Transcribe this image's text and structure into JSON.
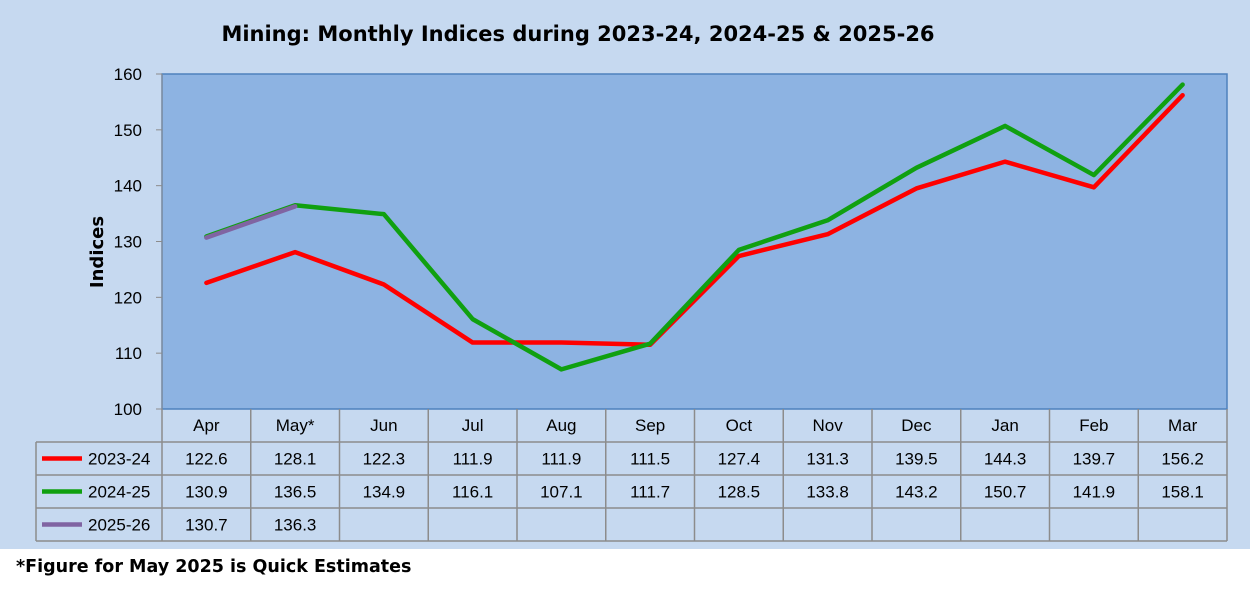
{
  "chart_data": {
    "type": "line",
    "title": "Mining: Monthly Indices  during  2023-24, 2024-25 & 2025-26",
    "ylabel": "Indices",
    "xlabel": "",
    "ylim": [
      100,
      160
    ],
    "yticks": [
      100,
      110,
      120,
      130,
      140,
      150,
      160
    ],
    "categories": [
      "Apr",
      "May*",
      "Jun",
      "Jul",
      "Aug",
      "Sep",
      "Oct",
      "Nov",
      "Dec",
      "Jan",
      "Feb",
      "Mar"
    ],
    "series": [
      {
        "name": "2023-24",
        "color": "#ff0000",
        "values": [
          122.6,
          128.1,
          122.3,
          111.9,
          111.9,
          111.5,
          127.4,
          131.3,
          139.5,
          144.3,
          139.7,
          156.2
        ]
      },
      {
        "name": "2024-25",
        "color": "#10a010",
        "values": [
          130.9,
          136.5,
          134.9,
          116.1,
          107.1,
          111.7,
          128.5,
          133.8,
          143.2,
          150.7,
          141.9,
          158.1
        ]
      },
      {
        "name": "2025-26",
        "color": "#8064a2",
        "values": [
          130.7,
          136.3,
          null,
          null,
          null,
          null,
          null,
          null,
          null,
          null,
          null,
          null
        ]
      }
    ],
    "legend": "data-table",
    "grid": false,
    "plot_background": "#8db3e2",
    "chart_background": "#c6d9f0"
  },
  "footnote": "*Figure for May 2025 is Quick Estimates"
}
